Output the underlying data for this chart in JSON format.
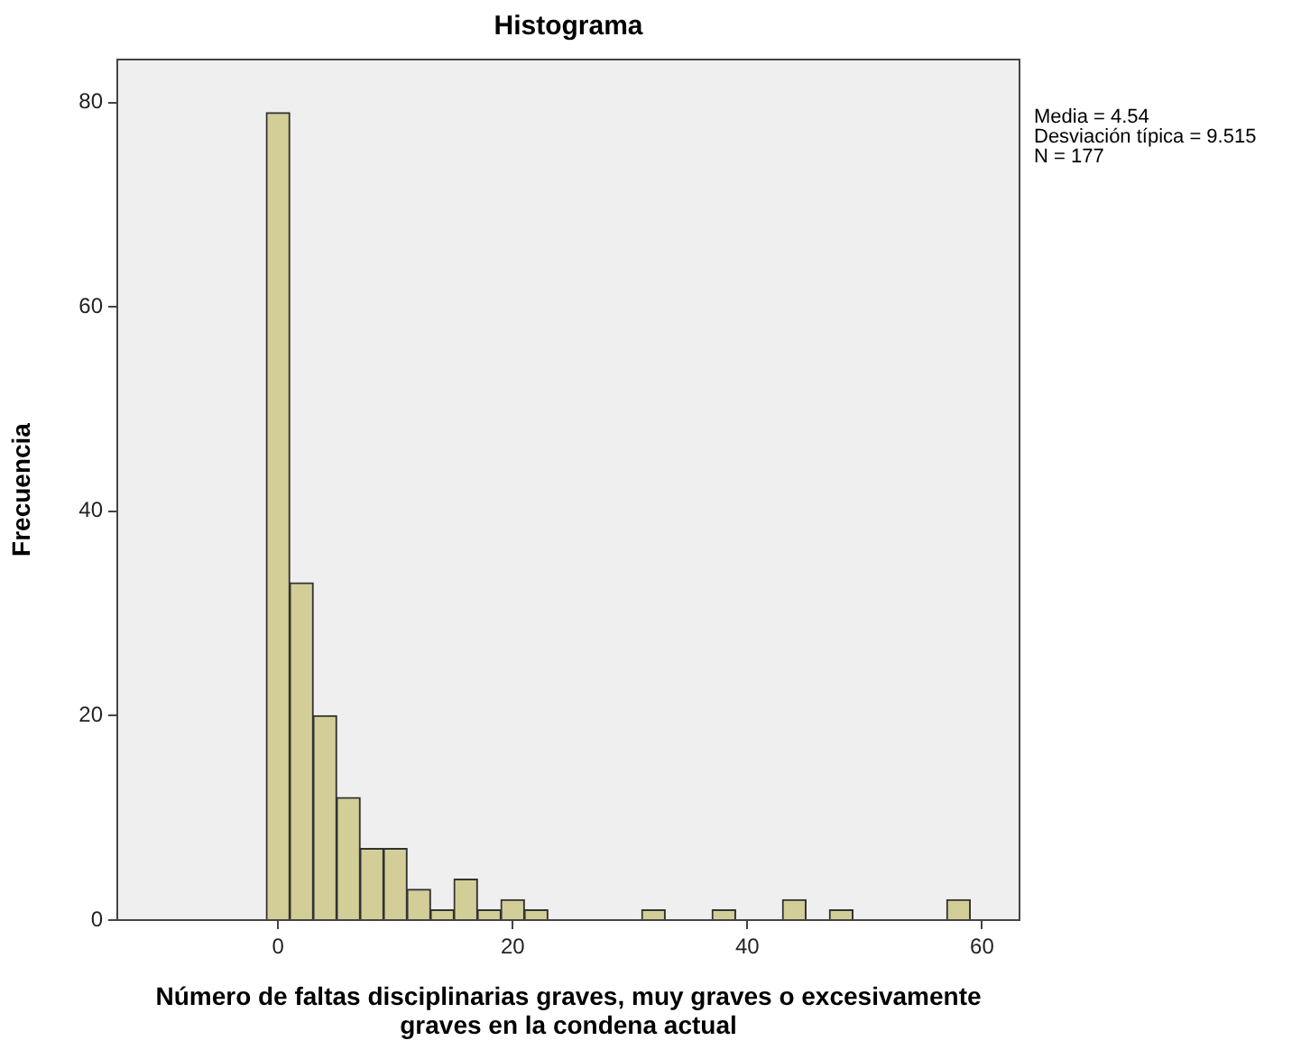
{
  "chart_data": {
    "type": "histogram",
    "title": "Histograma",
    "xlabel": "Número de faltas disciplinarias graves, muy graves o excesivamente graves en la condena actual",
    "ylabel": "Frecuencia",
    "annotations": [
      "Media = 4.54",
      "Desviación típica = 9.515",
      "N = 177"
    ],
    "bins": [
      -1,
      1,
      3,
      5,
      7,
      9,
      11,
      13,
      15,
      17,
      19,
      21,
      23,
      25,
      27,
      29,
      31,
      33,
      35,
      37,
      39,
      41,
      43,
      45,
      47,
      49,
      51,
      53,
      55,
      57,
      59
    ],
    "values": [
      79,
      33,
      20,
      12,
      7,
      7,
      3,
      1,
      4,
      1,
      2,
      1,
      0,
      0,
      0,
      0,
      1,
      0,
      0,
      1,
      0,
      0,
      2,
      0,
      1,
      0,
      0,
      0,
      0,
      2
    ],
    "color": "#d3ce98",
    "xlim": [
      -13.7,
      63.2
    ],
    "ylim": [
      0,
      84.2
    ],
    "xticks": [
      0,
      20,
      40,
      60
    ],
    "yticks": [
      0,
      20,
      40,
      60,
      80
    ]
  }
}
